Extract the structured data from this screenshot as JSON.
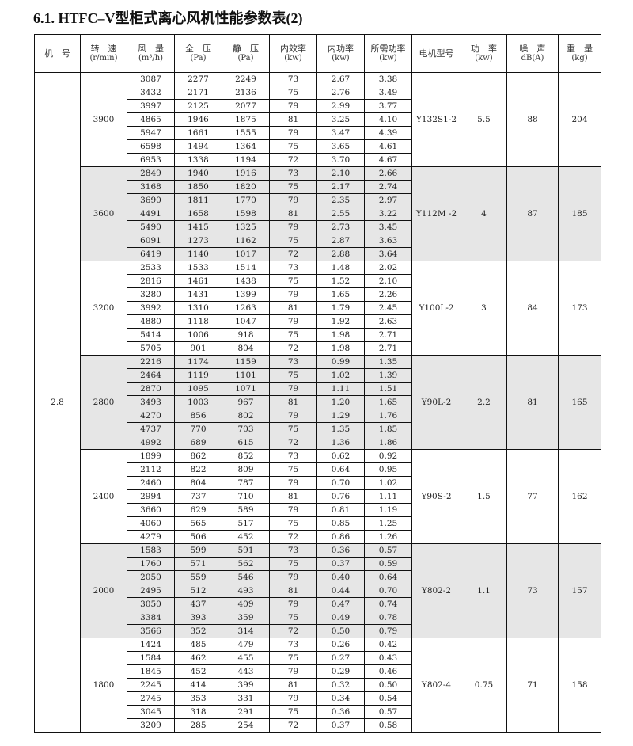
{
  "title": "6.1. HTFC–V型柜式离心风机性能参数表(2)",
  "table": {
    "headers": [
      {
        "label": "机　号",
        "unit": ""
      },
      {
        "label": "转　速",
        "unit": "(r/min)"
      },
      {
        "label": "风　量",
        "unit": "(m³/h)"
      },
      {
        "label": "全　压",
        "unit": "(Pa)"
      },
      {
        "label": "静　压",
        "unit": "(Pa)"
      },
      {
        "label": "内效率",
        "unit": "(kw)"
      },
      {
        "label": "内功率",
        "unit": "(kw)"
      },
      {
        "label": "所需功率",
        "unit": "(kw)"
      },
      {
        "label": "电机型号",
        "unit": ""
      },
      {
        "label": "功　率",
        "unit": "(kw)"
      },
      {
        "label": "噪　声",
        "unit": "dB(A)"
      },
      {
        "label": "重　量",
        "unit": "(kg)"
      }
    ],
    "machine_no": "2.8",
    "shade_color": "#e6e6e6",
    "groups": [
      {
        "speed": "3900",
        "motor": "Y132S1-2",
        "power": "5.5",
        "noise": "88",
        "weight": "204",
        "shaded": false,
        "rows": [
          [
            "3087",
            "2277",
            "2249",
            "73",
            "2.67",
            "3.38"
          ],
          [
            "3432",
            "2171",
            "2136",
            "75",
            "2.76",
            "3.49"
          ],
          [
            "3997",
            "2125",
            "2077",
            "79",
            "2.99",
            "3.77"
          ],
          [
            "4865",
            "1946",
            "1875",
            "81",
            "3.25",
            "4.10"
          ],
          [
            "5947",
            "1661",
            "1555",
            "79",
            "3.47",
            "4.39"
          ],
          [
            "6598",
            "1494",
            "1364",
            "75",
            "3.65",
            "4.61"
          ],
          [
            "6953",
            "1338",
            "1194",
            "72",
            "3.70",
            "4.67"
          ]
        ]
      },
      {
        "speed": "3600",
        "motor": "Y112M -2",
        "power": "4",
        "noise": "87",
        "weight": "185",
        "shaded": true,
        "rows": [
          [
            "2849",
            "1940",
            "1916",
            "73",
            "2.10",
            "2.66"
          ],
          [
            "3168",
            "1850",
            "1820",
            "75",
            "2.17",
            "2.74"
          ],
          [
            "3690",
            "1811",
            "1770",
            "79",
            "2.35",
            "2.97"
          ],
          [
            "4491",
            "1658",
            "1598",
            "81",
            "2.55",
            "3.22"
          ],
          [
            "5490",
            "1415",
            "1325",
            "79",
            "2.73",
            "3.45"
          ],
          [
            "6091",
            "1273",
            "1162",
            "75",
            "2.87",
            "3.63"
          ],
          [
            "6419",
            "1140",
            "1017",
            "72",
            "2.88",
            "3.64"
          ]
        ]
      },
      {
        "speed": "3200",
        "motor": "Y100L-2",
        "power": "3",
        "noise": "84",
        "weight": "173",
        "shaded": false,
        "rows": [
          [
            "2533",
            "1533",
            "1514",
            "73",
            "1.48",
            "2.02"
          ],
          [
            "2816",
            "1461",
            "1438",
            "75",
            "1.52",
            "2.10"
          ],
          [
            "3280",
            "1431",
            "1399",
            "79",
            "1.65",
            "2.26"
          ],
          [
            "3992",
            "1310",
            "1263",
            "81",
            "1.79",
            "2.45"
          ],
          [
            "4880",
            "1118",
            "1047",
            "79",
            "1.92",
            "2.63"
          ],
          [
            "5414",
            "1006",
            "918",
            "75",
            "1.98",
            "2.71"
          ],
          [
            "5705",
            "901",
            "804",
            "72",
            "1.98",
            "2.71"
          ]
        ]
      },
      {
        "speed": "2800",
        "motor": "Y90L-2",
        "power": "2.2",
        "noise": "81",
        "weight": "165",
        "shaded": true,
        "rows": [
          [
            "2216",
            "1174",
            "1159",
            "73",
            "0.99",
            "1.35"
          ],
          [
            "2464",
            "1119",
            "1101",
            "75",
            "1.02",
            "1.39"
          ],
          [
            "2870",
            "1095",
            "1071",
            "79",
            "1.11",
            "1.51"
          ],
          [
            "3493",
            "1003",
            "967",
            "81",
            "1.20",
            "1.65"
          ],
          [
            "4270",
            "856",
            "802",
            "79",
            "1.29",
            "1.76"
          ],
          [
            "4737",
            "770",
            "703",
            "75",
            "1.35",
            "1.85"
          ],
          [
            "4992",
            "689",
            "615",
            "72",
            "1.36",
            "1.86"
          ]
        ]
      },
      {
        "speed": "2400",
        "motor": "Y90S-2",
        "power": "1.5",
        "noise": "77",
        "weight": "162",
        "shaded": false,
        "rows": [
          [
            "1899",
            "862",
            "852",
            "73",
            "0.62",
            "0.92"
          ],
          [
            "2112",
            "822",
            "809",
            "75",
            "0.64",
            "0.95"
          ],
          [
            "2460",
            "804",
            "787",
            "79",
            "0.70",
            "1.02"
          ],
          [
            "2994",
            "737",
            "710",
            "81",
            "0.76",
            "1.11"
          ],
          [
            "3660",
            "629",
            "589",
            "79",
            "0.81",
            "1.19"
          ],
          [
            "4060",
            "565",
            "517",
            "75",
            "0.85",
            "1.25"
          ],
          [
            "4279",
            "506",
            "452",
            "72",
            "0.86",
            "1.26"
          ]
        ]
      },
      {
        "speed": "2000",
        "motor": "Y802-2",
        "power": "1.1",
        "noise": "73",
        "weight": "157",
        "shaded": true,
        "rows": [
          [
            "1583",
            "599",
            "591",
            "73",
            "0.36",
            "0.57"
          ],
          [
            "1760",
            "571",
            "562",
            "75",
            "0.37",
            "0.59"
          ],
          [
            "2050",
            "559",
            "546",
            "79",
            "0.40",
            "0.64"
          ],
          [
            "2495",
            "512",
            "493",
            "81",
            "0.44",
            "0.70"
          ],
          [
            "3050",
            "437",
            "409",
            "79",
            "0.47",
            "0.74"
          ],
          [
            "3384",
            "393",
            "359",
            "75",
            "0.49",
            "0.78"
          ],
          [
            "3566",
            "352",
            "314",
            "72",
            "0.50",
            "0.79"
          ]
        ]
      },
      {
        "speed": "1800",
        "motor": "Y802-4",
        "power": "0.75",
        "noise": "71",
        "weight": "158",
        "shaded": false,
        "rows": [
          [
            "1424",
            "485",
            "479",
            "73",
            "0.26",
            "0.42"
          ],
          [
            "1584",
            "462",
            "455",
            "75",
            "0.27",
            "0.43"
          ],
          [
            "1845",
            "452",
            "443",
            "79",
            "0.29",
            "0.46"
          ],
          [
            "2245",
            "414",
            "399",
            "81",
            "0.32",
            "0.50"
          ],
          [
            "2745",
            "353",
            "331",
            "79",
            "0.34",
            "0.54"
          ],
          [
            "3045",
            "318",
            "291",
            "75",
            "0.36",
            "0.57"
          ],
          [
            "3209",
            "285",
            "254",
            "72",
            "0.37",
            "0.58"
          ]
        ]
      }
    ]
  }
}
